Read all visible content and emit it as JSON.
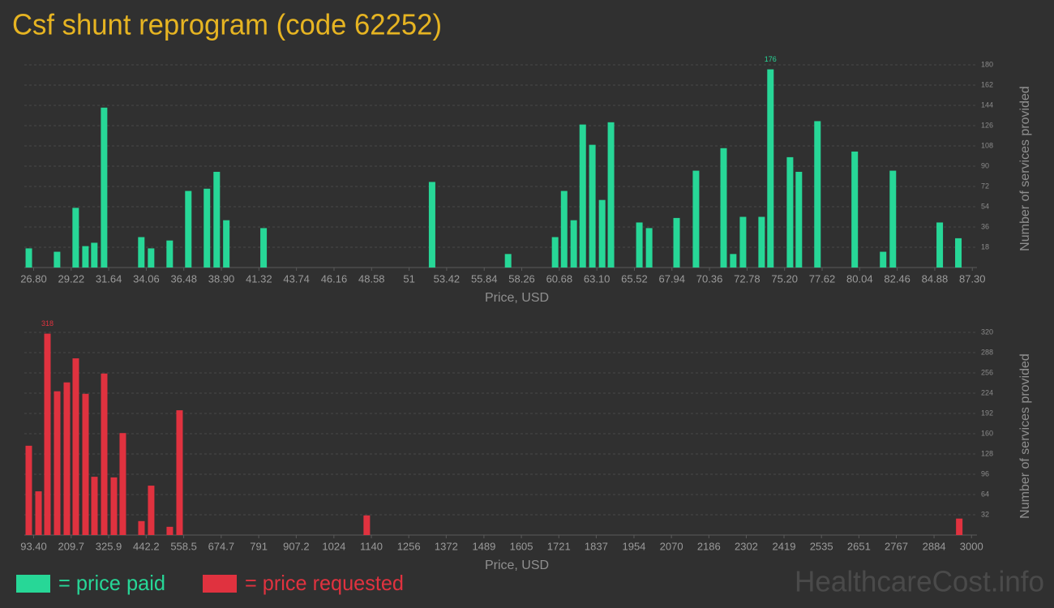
{
  "title": "Csf shunt reprogram (code 62252)",
  "watermark": "HealthcareCost.info",
  "chart_data": [
    {
      "type": "bar",
      "x_label": "Price, USD",
      "y_label": "Number of services provided",
      "x": [
        26.49,
        28.31,
        29.51,
        30.14,
        30.71,
        31.34,
        33.74,
        34.37,
        35.57,
        36.77,
        37.97,
        38.6,
        39.22,
        41.62,
        52.48,
        57.38,
        60.41,
        60.99,
        61.61,
        62.19,
        62.81,
        63.44,
        64.01,
        65.84,
        66.47,
        68.24,
        69.49,
        71.27,
        71.89,
        72.52,
        73.72,
        74.29,
        75.55,
        76.12,
        77.32,
        79.72,
        81.55,
        82.18,
        85.2,
        86.4
      ],
      "series": [
        {
          "name": "= price paid",
          "color": "#27d797",
          "values": [
            17,
            14,
            53,
            19,
            22,
            142,
            27,
            17,
            24,
            68,
            70,
            85,
            42,
            35,
            76,
            12,
            27,
            68,
            42,
            127,
            109,
            60,
            129,
            40,
            35,
            44,
            86,
            106,
            12,
            45,
            45,
            176,
            98,
            85,
            130,
            103,
            14,
            86,
            40,
            26
          ]
        }
      ],
      "xlim": [
        26.2,
        87.6
      ],
      "xticks": [
        {
          "value": 26.8,
          "label": "26.80"
        },
        29.22,
        31.64,
        34.06,
        36.48,
        {
          "value": 38.9,
          "label": "38.90"
        },
        41.32,
        43.74,
        46.16,
        48.58,
        51,
        53.42,
        55.84,
        58.26,
        60.68,
        {
          "value": 63.1,
          "label": "63.10"
        },
        65.52,
        67.94,
        70.36,
        72.78,
        {
          "value": 75.2,
          "label": "75.20"
        },
        77.62,
        80.04,
        82.46,
        84.88,
        {
          "value": 87.3,
          "label": "87.30"
        }
      ],
      "ylim": [
        0,
        180
      ],
      "yticks": [
        18,
        36,
        54,
        72,
        90,
        108,
        126,
        144,
        162,
        180
      ],
      "grid": true
    },
    {
      "type": "bar",
      "x_label": "Price, USD",
      "y_label": "Number of services provided",
      "x": [
        78.3,
        108.5,
        136.1,
        166.3,
        196.4,
        224.0,
        254.2,
        281.8,
        312.0,
        342.1,
        369.7,
        427.5,
        457.6,
        515.4,
        545.6,
        1125.8,
        2962.1
      ],
      "series": [
        {
          "name": "= price requested",
          "color": "#e0323f",
          "values": [
            141,
            69,
            318,
            227,
            241,
            279,
            223,
            92,
            255,
            91,
            161,
            22,
            78,
            13,
            197,
            31,
            26
          ]
        }
      ],
      "xlim": [
        64.5,
        3017
      ],
      "xticks": [
        {
          "value": 93.4,
          "label": "93.40"
        },
        209.7,
        325.9,
        442.2,
        558.5,
        674.7,
        791,
        907.2,
        1024,
        1140,
        1256,
        1372,
        1489,
        1605,
        1721,
        1837,
        1954,
        2070,
        2186,
        2302,
        2419,
        2535,
        2651,
        2767,
        2884,
        3000
      ],
      "ylim": [
        0,
        320
      ],
      "yticks": [
        32,
        64,
        96,
        128,
        160,
        192,
        224,
        256,
        288,
        320
      ],
      "grid": true
    }
  ]
}
